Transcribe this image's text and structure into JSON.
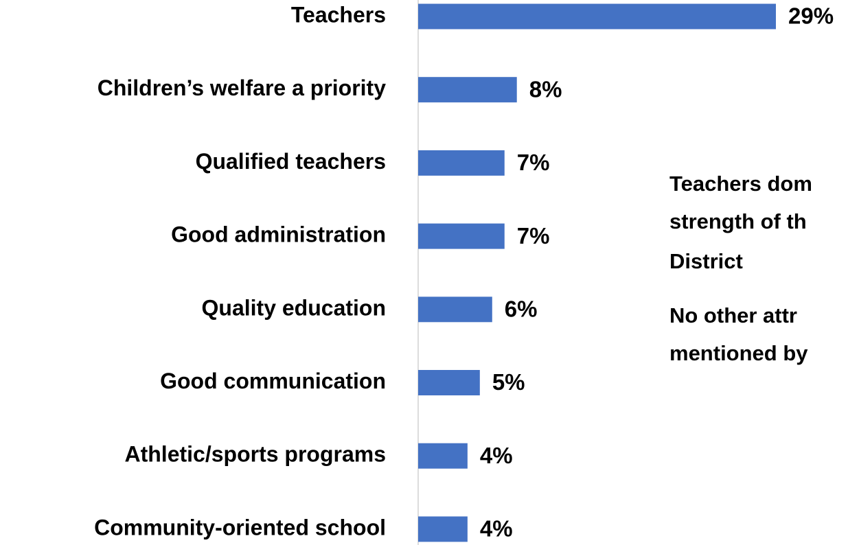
{
  "chart_data": {
    "type": "barh",
    "categories": [
      "Teachers",
      "Children’s welfare a priority",
      "Qualified teachers",
      "Good administration",
      "Quality education",
      "Good communication",
      "Athletic/sports programs",
      "Community-oriented school"
    ],
    "values": [
      29,
      8,
      7,
      7,
      6,
      5,
      4,
      4
    ],
    "value_labels": [
      "29%",
      "8%",
      "7%",
      "7%",
      "6%",
      "5%",
      "4%",
      "4%"
    ],
    "color": "#4472c4",
    "annotations": [
      "Teachers dom",
      "strength of th",
      "District",
      "No other attr",
      "mentioned by"
    ]
  }
}
